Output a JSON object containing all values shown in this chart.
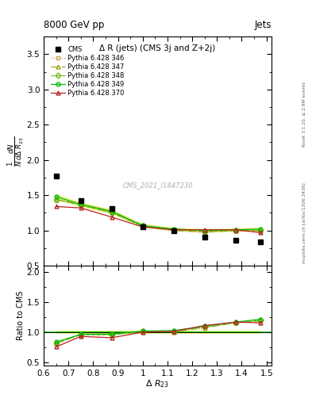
{
  "title": "Δ R (jets) (CMS 3j and Z+2j)",
  "header_left": "8000 GeV pp",
  "header_right": "Jets",
  "xlabel": "Δ R_{23}",
  "ylabel_main": "$\\frac{1}{N}\\frac{dN}{d\\Delta\\ R_{23}}$",
  "ylabel_ratio": "Ratio to CMS",
  "watermark": "CMS_2021_I1847230",
  "right_label": "Rivet 3.1.10, ≥ 2.9M events",
  "right_label2": "mcplots.cern.ch [arXiv:1306.3436]",
  "xlim": [
    0.6,
    1.52
  ],
  "ylim_main": [
    0.5,
    3.75
  ],
  "ylim_ratio": [
    0.45,
    2.1
  ],
  "yticks_main": [
    0.5,
    1.0,
    1.5,
    2.0,
    2.5,
    3.0,
    3.5
  ],
  "yticks_ratio": [
    0.5,
    1.0,
    1.5,
    2.0
  ],
  "xticks": [
    0.6,
    0.7,
    0.8,
    0.9,
    1.0,
    1.1,
    1.2,
    1.3,
    1.4,
    1.5
  ],
  "cms_x": [
    0.65,
    0.75,
    0.875,
    1.0,
    1.125,
    1.25,
    1.375,
    1.475
  ],
  "cms_y": [
    1.77,
    1.42,
    1.31,
    1.05,
    0.995,
    0.91,
    0.865,
    0.84
  ],
  "p346_x": [
    0.65,
    0.75,
    0.875,
    1.0,
    1.125,
    1.25,
    1.375,
    1.475
  ],
  "p346_y": [
    1.43,
    1.37,
    1.28,
    1.07,
    1.01,
    0.97,
    1.0,
    1.0
  ],
  "p347_x": [
    0.65,
    0.75,
    0.875,
    1.0,
    1.125,
    1.25,
    1.375,
    1.475
  ],
  "p347_y": [
    1.44,
    1.37,
    1.26,
    1.06,
    1.0,
    0.98,
    1.0,
    1.0
  ],
  "p348_x": [
    0.65,
    0.75,
    0.875,
    1.0,
    1.125,
    1.25,
    1.375,
    1.475
  ],
  "p348_y": [
    1.44,
    1.36,
    1.25,
    1.06,
    1.01,
    0.99,
    1.0,
    1.0
  ],
  "p349_x": [
    0.65,
    0.75,
    0.875,
    1.0,
    1.125,
    1.25,
    1.375,
    1.475
  ],
  "p349_y": [
    1.48,
    1.37,
    1.27,
    1.07,
    1.02,
    1.0,
    1.01,
    1.02
  ],
  "p370_x": [
    0.65,
    0.75,
    0.875,
    1.0,
    1.125,
    1.25,
    1.375,
    1.475
  ],
  "p370_y": [
    1.34,
    1.32,
    1.19,
    1.05,
    1.01,
    1.01,
    1.01,
    0.97
  ],
  "ratio346": [
    0.808,
    0.965,
    0.977,
    1.019,
    1.015,
    1.066,
    1.156,
    1.19
  ],
  "ratio347": [
    0.814,
    0.965,
    0.962,
    1.01,
    1.005,
    1.077,
    1.156,
    1.19
  ],
  "ratio348": [
    0.814,
    0.958,
    0.954,
    1.01,
    1.015,
    1.088,
    1.156,
    1.19
  ],
  "ratio349": [
    0.836,
    0.965,
    0.969,
    1.019,
    1.025,
    1.099,
    1.167,
    1.214
  ],
  "ratio370": [
    0.757,
    0.93,
    0.908,
    1.0,
    1.015,
    1.11,
    1.167,
    1.155
  ],
  "color346": "#c8a050",
  "color347": "#a0a020",
  "color348": "#78b820",
  "color349": "#00bb00",
  "color370": "#bb2020",
  "cms_color": "#000000",
  "ref_band_color_main": "#e8ee80",
  "ref_band_color_ratio": "#e8ee80",
  "ratio_line_color": "#00bb00"
}
